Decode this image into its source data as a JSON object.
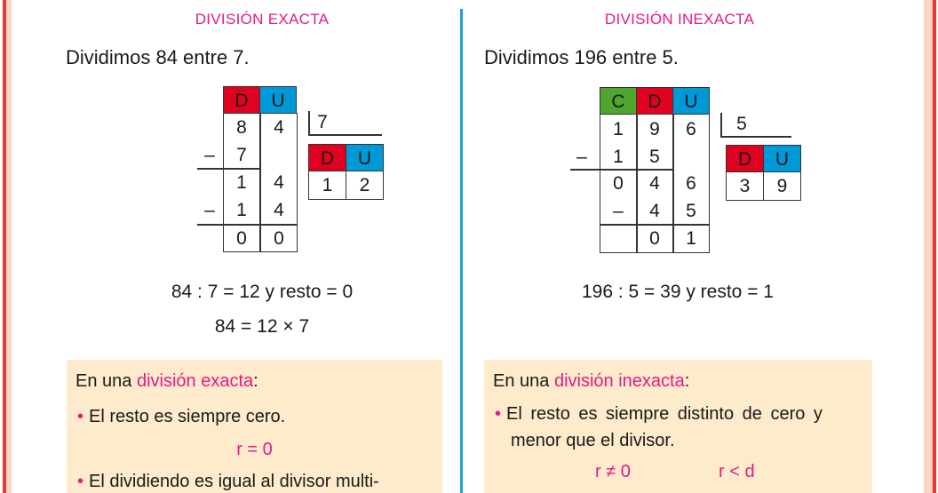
{
  "left": {
    "title": "DIVISIÓN EXACTA",
    "intro": "Dividimos 84 entre 7.",
    "headers": [
      "D",
      "U"
    ],
    "rows": [
      [
        "8",
        "4"
      ],
      [
        "7",
        ""
      ],
      [
        "1",
        "4"
      ],
      [
        "1",
        "4"
      ],
      [
        "0",
        "0"
      ]
    ],
    "divisor": "7",
    "quotient_headers": [
      "D",
      "U"
    ],
    "quotient": [
      "1",
      "2"
    ],
    "equation1": "84 : 7 = 12 y resto = 0",
    "equation2": "84 = 12 × 7",
    "note": {
      "prefix": "En una ",
      "term": "división exacta",
      "suffix": ":",
      "bullet1": "El resto es siempre cero.",
      "formula": "r = 0",
      "bullet2": "El dividiendo es igual al divisor multi-"
    }
  },
  "right": {
    "title": "DIVISIÓN INEXACTA",
    "intro": "Dividimos 196 entre 5.",
    "headers": [
      "C",
      "D",
      "U"
    ],
    "rows": [
      [
        "1",
        "9",
        "6"
      ],
      [
        "1",
        "5",
        ""
      ],
      [
        "0",
        "4",
        "6"
      ],
      [
        "–",
        "4",
        "5"
      ],
      [
        "",
        "0",
        "1"
      ]
    ],
    "divisor": "5",
    "quotient_headers": [
      "D",
      "U"
    ],
    "quotient": [
      "3",
      "9"
    ],
    "equation1": "196 : 5 = 39 y resto = 1",
    "note": {
      "prefix": "En una ",
      "term": "división inexacta",
      "suffix": ":",
      "bullet1a": "El resto es siempre distinto de cero y",
      "bullet1b": "menor que el divisor.",
      "formula1": "r ≠ 0",
      "formula2": "r < d"
    }
  },
  "minus": "–",
  "bullet": "•",
  "colors": {
    "accent": "#e5198a",
    "C": "#4ea52f",
    "D": "#e0001f",
    "U": "#0099d8",
    "note_bg": "#fdebcc",
    "divider": "#1aa0dc",
    "border": "#e8383d"
  }
}
